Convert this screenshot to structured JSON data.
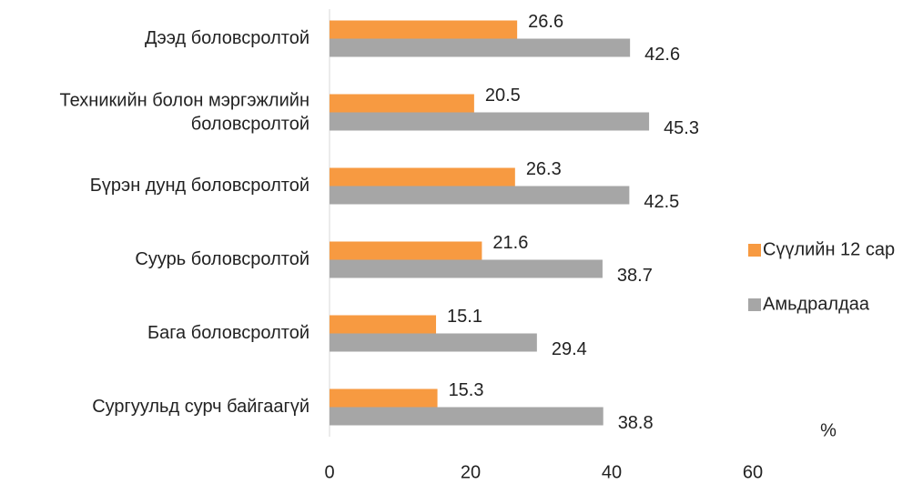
{
  "chart_data": {
    "type": "bar",
    "orientation": "horizontal",
    "categories": [
      "Дээд боловсролтой",
      "Техникийн болон мэргэжлийн боловсролтой",
      "Бүрэн дунд боловсролтой",
      "Суурь боловсролтой",
      "Бага боловсролтой",
      "Сургуульд сурч байгаагүй"
    ],
    "series": [
      {
        "name": "Сүүлийн 12 сар",
        "color": "#f79a41",
        "values": [
          26.6,
          20.5,
          26.3,
          21.6,
          15.1,
          15.3
        ]
      },
      {
        "name": "Амьдралдаа",
        "color": "#a6a6a6",
        "values": [
          42.6,
          45.3,
          42.5,
          38.7,
          29.4,
          38.8
        ]
      }
    ],
    "xlim": [
      0,
      60
    ],
    "xticks": [
      0,
      20,
      40,
      60
    ],
    "annotation": "%",
    "legend": "right",
    "grid": false
  }
}
